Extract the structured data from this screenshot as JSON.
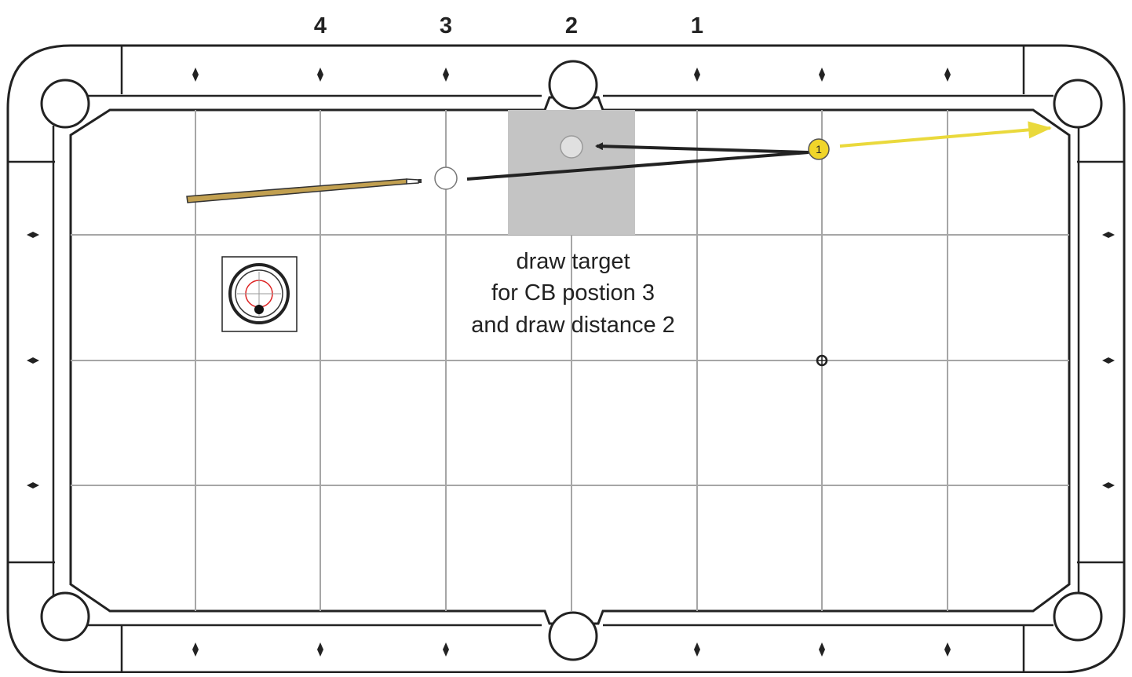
{
  "column_labels": [
    "4",
    "3",
    "2",
    "1"
  ],
  "caption": {
    "line1": "draw target",
    "line2": "for CB postion 3",
    "line3": "and draw distance 2"
  },
  "object_ball": {
    "number": "1",
    "color": "#f0d52a"
  },
  "colors": {
    "cloth": "#ffffff",
    "rail_outline": "#222222",
    "grid": "#a6a6a6",
    "draw_target_zone": "#c4c4c4",
    "object_ball_path": "#ead93c",
    "cue_shaft": "#c2a050"
  },
  "cue_tip": {
    "label": "low center (draw)"
  }
}
